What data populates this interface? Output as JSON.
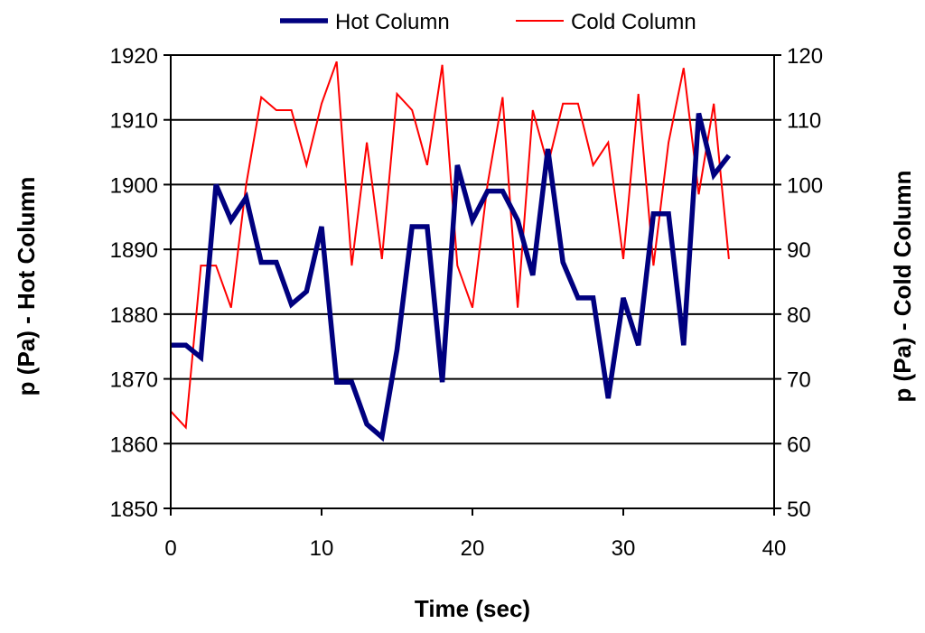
{
  "chart_data": {
    "type": "line",
    "xlabel": "Time (sec)",
    "ylabel_left": "p (Pa) - Hot Column",
    "ylabel_right": "p (Pa) - Cold Column",
    "xlim": [
      0,
      40
    ],
    "ylim_left": [
      1850,
      1920
    ],
    "ylim_right": [
      50,
      120
    ],
    "xticks": [
      "0",
      "10",
      "20",
      "30",
      "40"
    ],
    "yticks_left": [
      "1850",
      "1860",
      "1870",
      "1880",
      "1890",
      "1900",
      "1910",
      "1920"
    ],
    "yticks_right": [
      "50",
      "60",
      "70",
      "80",
      "90",
      "100",
      "110",
      "120"
    ],
    "grid": "horizontal",
    "legend_position": "top",
    "series": [
      {
        "name": "Hot Column",
        "axis": "left",
        "color": "#00007f",
        "x": [
          0,
          1,
          2,
          3,
          4,
          5,
          6,
          7,
          8,
          9,
          10,
          11,
          12,
          13,
          14,
          15,
          16,
          17,
          18,
          19,
          20,
          21,
          22,
          23,
          24,
          25,
          26,
          27,
          28,
          29,
          30,
          31,
          32,
          33,
          34,
          35,
          36,
          37
        ],
        "y": [
          1875.2,
          1875.2,
          1873.3,
          1900,
          1894.5,
          1898,
          1888,
          1888,
          1881.5,
          1883.5,
          1893.5,
          1869.5,
          1869.5,
          1863,
          1861,
          1874.5,
          1893.5,
          1893.5,
          1869.5,
          1903,
          1894.5,
          1899,
          1899,
          1894.5,
          1886,
          1905.5,
          1888,
          1882.5,
          1882.5,
          1867,
          1882.5,
          1875.2,
          1895.5,
          1895.5,
          1875.2,
          1911,
          1901.5,
          1904.5
        ]
      },
      {
        "name": "Cold Column",
        "axis": "right",
        "color": "#ff0000",
        "x": [
          0,
          1,
          2,
          3,
          4,
          5,
          6,
          7,
          8,
          9,
          10,
          11,
          12,
          13,
          14,
          15,
          16,
          17,
          18,
          19,
          20,
          21,
          22,
          23,
          24,
          25,
          26,
          27,
          28,
          29,
          30,
          31,
          32,
          33,
          34,
          35,
          36,
          37
        ],
        "y": [
          65,
          62.5,
          87.5,
          87.5,
          81,
          100,
          113.5,
          111.5,
          111.5,
          103,
          112.5,
          119,
          87.5,
          106.5,
          88.5,
          114,
          111.5,
          103,
          118.5,
          87.5,
          81,
          100,
          113.5,
          81,
          111.5,
          103,
          112.5,
          112.5,
          103,
          106.5,
          88.5,
          114,
          87.5,
          106.5,
          118,
          98.5,
          112.5,
          88.5
        ]
      }
    ]
  }
}
